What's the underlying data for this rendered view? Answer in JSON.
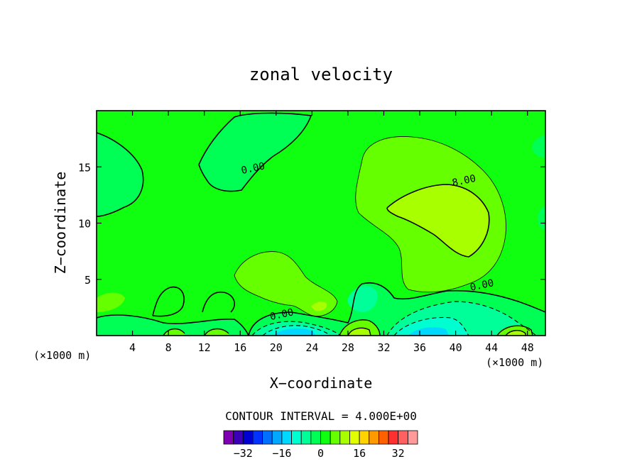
{
  "chart_data": {
    "type": "heatmap",
    "title": "zonal velocity",
    "xlabel": "X−coordinate",
    "ylabel": "Z−coordinate",
    "x_unit_left": "(×1000 m)",
    "x_unit_right": "(×1000 m)",
    "xlim": [
      0,
      50
    ],
    "ylim": [
      0,
      20
    ],
    "x_ticks": [
      "4",
      "8",
      "12",
      "16",
      "20",
      "24",
      "28",
      "32",
      "36",
      "40",
      "44",
      "48"
    ],
    "x_tick_values": [
      4,
      8,
      12,
      16,
      20,
      24,
      28,
      32,
      36,
      40,
      44,
      48
    ],
    "y_ticks": [
      "5",
      "10",
      "15"
    ],
    "y_tick_values": [
      5,
      10,
      15
    ],
    "contour_interval_label": "CONTOUR INTERVAL = 4.000E+00",
    "contour_labels": [
      {
        "text": "0.00",
        "x": 17.5,
        "y": 14.6
      },
      {
        "text": "8.00",
        "x": 41.0,
        "y": 13.5
      },
      {
        "text": "0.00",
        "x": 43.0,
        "y": 4.2
      },
      {
        "text": "0.00",
        "x": 20.7,
        "y": 1.6
      }
    ],
    "colorbar": {
      "levels": [
        -40,
        -36,
        -32,
        -28,
        -24,
        -20,
        -16,
        -12,
        -8,
        -4,
        0,
        4,
        8,
        12,
        16,
        20,
        24,
        28,
        32,
        36,
        40
      ],
      "tick_labels": [
        "−32",
        "−16",
        "0",
        "16",
        "32"
      ],
      "tick_values": [
        -32,
        -16,
        0,
        16,
        32
      ],
      "colors": [
        "#7f00b2",
        "#3b00b8",
        "#0000d4",
        "#0033ff",
        "#0070ff",
        "#00a8ff",
        "#00d8ff",
        "#00ffd0",
        "#00ff99",
        "#00ff55",
        "#10ff10",
        "#66ff00",
        "#a8ff00",
        "#e0ff00",
        "#ffd200",
        "#ff9900",
        "#ff6000",
        "#ff3030",
        "#ff6060",
        "#ff9a9a"
      ]
    },
    "region_colors": {
      "background": "#10ff10",
      "positive_4": "#66ff00",
      "positive_8": "#a8ff00",
      "negative_4": "#00ff55",
      "negative_8": "#00ff99",
      "negative_12": "#00ffd0",
      "negative_16": "#00d8ff"
    }
  }
}
